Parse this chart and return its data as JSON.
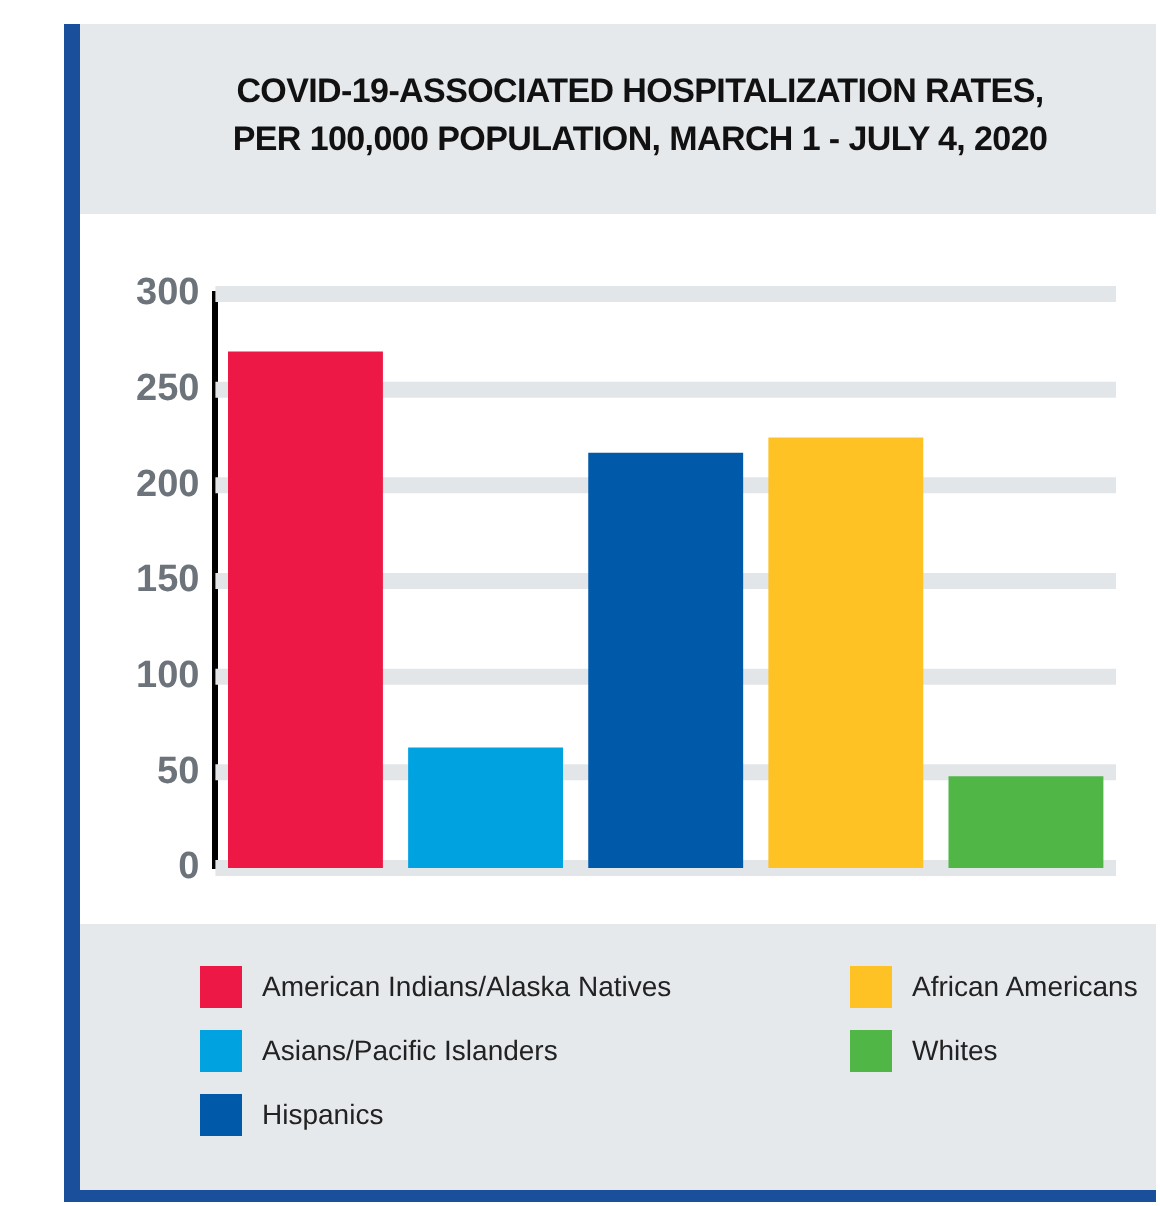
{
  "chart_data": {
    "type": "bar",
    "title": "COVID-19-ASSOCIATED HOSPITALIZATION RATES,\nPER 100,000 POPULATION, MARCH 1 - JULY 4, 2020",
    "categories": [
      null,
      null,
      null,
      null,
      null
    ],
    "series": [
      {
        "name": "American Indians/Alaska Natives",
        "color": "#ed1846",
        "values": [
          270,
          null,
          null,
          null,
          null
        ]
      },
      {
        "name": "Asians/Pacific Islanders",
        "color": "#00a3e0",
        "values": [
          null,
          63,
          null,
          null,
          null
        ]
      },
      {
        "name": "Hispanics",
        "color": "#005aa9",
        "values": [
          null,
          null,
          217,
          null,
          null
        ]
      },
      {
        "name": "African Americans",
        "color": "#fec225",
        "values": [
          null,
          null,
          null,
          225,
          null
        ]
      },
      {
        "name": "Whites",
        "color": "#50b747",
        "values": [
          null,
          null,
          null,
          null,
          48
        ]
      }
    ],
    "ylim": [
      0,
      300
    ],
    "yticks": [
      0,
      50,
      100,
      150,
      200,
      250,
      300
    ],
    "grid": "y",
    "legend": "bottom",
    "tick_labels": "y"
  }
}
